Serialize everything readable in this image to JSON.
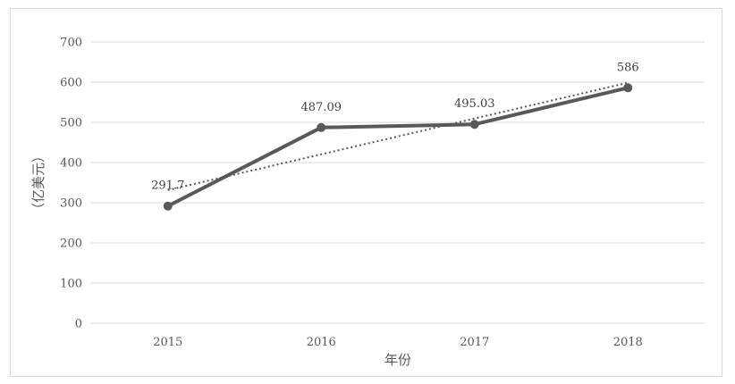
{
  "chart_data": {
    "type": "line",
    "title": "",
    "xlabel": "年份",
    "ylabel": "（亿美元）",
    "categories": [
      "2015",
      "2016",
      "2017",
      "2018"
    ],
    "series": [
      {
        "values": [
          291.7,
          487.09,
          495.03,
          586
        ],
        "color": "#595959",
        "data_labels": [
          "291.7",
          "487.09",
          "495.03",
          "586"
        ]
      }
    ],
    "trendline": {
      "type": "linear",
      "style": "dotted",
      "color": "#595959"
    },
    "ylim": [
      0,
      700
    ],
    "yticks": [
      0,
      100,
      200,
      300,
      400,
      500,
      600,
      700
    ],
    "grid": true,
    "legend": "none"
  }
}
